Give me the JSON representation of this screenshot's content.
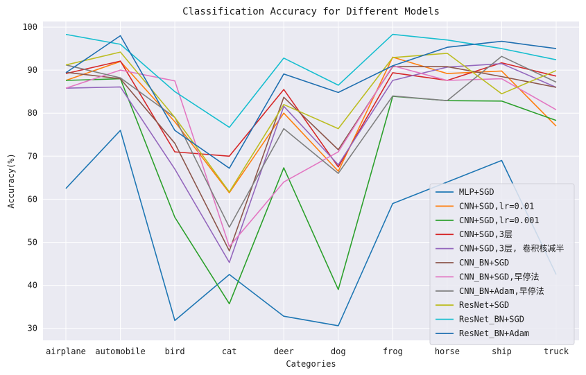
{
  "chart_data": {
    "type": "line",
    "title": "Classification Accuracy for Different Models",
    "xlabel": "Categories",
    "ylabel": "Accuracy(%)",
    "categories": [
      "airplane",
      "automobile",
      "bird",
      "cat",
      "deer",
      "dog",
      "frog",
      "horse",
      "ship",
      "truck"
    ],
    "ylim": [
      27.2,
      101.3
    ],
    "yticks": [
      30,
      40,
      50,
      60,
      70,
      80,
      90,
      100
    ],
    "grid": true,
    "legend_position": "lower-right",
    "series": [
      {
        "name": "MLP+SGD",
        "color": "#1f77b4",
        "values": [
          62.5,
          76.0,
          31.8,
          42.5,
          32.8,
          30.6,
          59.0,
          64.0,
          69.0,
          42.5
        ]
      },
      {
        "name": "CNN+SGD,lr=0.01",
        "color": "#ff7f0e",
        "values": [
          87.6,
          92.0,
          78.0,
          61.5,
          80.0,
          66.5,
          93.0,
          89.2,
          89.8,
          77.0
        ]
      },
      {
        "name": "CNN+SGD,lr=0.001",
        "color": "#2ca02c",
        "values": [
          87.6,
          88.0,
          55.8,
          35.7,
          67.3,
          39.0,
          83.9,
          82.9,
          82.8,
          78.3
        ]
      },
      {
        "name": "CNN+SGD,3层",
        "color": "#d62728",
        "values": [
          89.2,
          92.1,
          71.0,
          70.0,
          85.5,
          67.5,
          89.4,
          87.6,
          91.7,
          88.6
        ]
      },
      {
        "name": "CNN+SGD,3层, 卷积核减半",
        "color": "#9467bd",
        "values": [
          85.8,
          86.1,
          67.0,
          45.3,
          81.6,
          68.0,
          87.6,
          90.7,
          91.5,
          86.0
        ]
      },
      {
        "name": "CNN_BN+SGD",
        "color": "#8c564b",
        "values": [
          89.5,
          88.0,
          73.0,
          48.0,
          83.7,
          71.5,
          90.8,
          90.8,
          88.5,
          86.0
        ]
      },
      {
        "name": "CNN_BN+SGD,早停法",
        "color": "#e377c2",
        "values": [
          85.8,
          90.0,
          87.5,
          49.0,
          64.0,
          71.0,
          91.0,
          87.6,
          88.0,
          80.8
        ]
      },
      {
        "name": "CNN_BN+Adam,早停法",
        "color": "#7f7f7f",
        "values": [
          91.2,
          88.2,
          79.0,
          53.5,
          76.4,
          66.0,
          84.0,
          82.9,
          93.2,
          87.2
        ]
      },
      {
        "name": "ResNet+SGD",
        "color": "#bcbd22",
        "values": [
          91.2,
          94.2,
          79.0,
          61.7,
          82.0,
          76.4,
          92.9,
          93.9,
          84.5,
          89.9
        ]
      },
      {
        "name": "ResNet_BN+SGD",
        "color": "#17becf",
        "values": [
          98.3,
          96.0,
          85.0,
          76.7,
          92.8,
          86.5,
          98.3,
          97.0,
          95.0,
          92.4
        ]
      },
      {
        "name": "ResNet_BN+Adam",
        "color": "#1f6fb0",
        "values": [
          89.4,
          98.0,
          76.0,
          67.2,
          89.1,
          84.8,
          91.0,
          95.3,
          96.7,
          95.0
        ]
      }
    ]
  }
}
